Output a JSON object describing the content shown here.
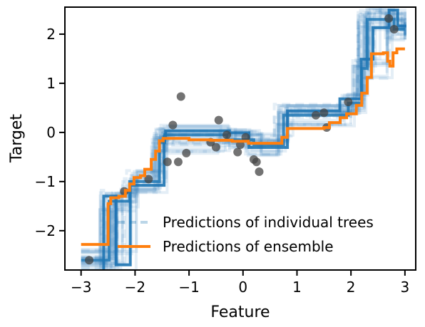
{
  "chart_data": {
    "type": "line",
    "title": "",
    "xlabel": "Feature",
    "ylabel": "Target",
    "xlim": [
      -3.3,
      3.2
    ],
    "ylim": [
      -2.8,
      2.55
    ],
    "x_ticks": [
      -3,
      -2,
      -1,
      0,
      1,
      2,
      3
    ],
    "x_tick_labels": [
      "−3",
      "−2",
      "−1",
      "0",
      "1",
      "2",
      "3"
    ],
    "y_ticks": [
      -2,
      -1,
      0,
      1,
      2
    ],
    "y_tick_labels": [
      "−2",
      "−1",
      "0",
      "1",
      "2"
    ],
    "grid": false,
    "legend": {
      "placement": "lower-right",
      "entries": [
        "Predictions of individual trees",
        "Predictions of ensemble"
      ]
    },
    "colors": {
      "trees": "#1f77b4",
      "ensemble": "#ff7f0e",
      "points": "#444444"
    },
    "scatter": {
      "x": [
        -2.85,
        -2.2,
        -1.75,
        -1.4,
        -1.3,
        -1.2,
        -1.15,
        -1.05,
        -0.6,
        -0.5,
        -0.45,
        -0.3,
        -0.05,
        -0.1,
        0.05,
        0.2,
        0.25,
        0.3,
        1.35,
        1.5,
        1.55,
        1.95,
        2.7,
        2.8
      ],
      "y": [
        -2.6,
        -1.2,
        -0.95,
        -0.6,
        0.15,
        -0.6,
        0.73,
        -0.42,
        -0.2,
        -0.3,
        0.25,
        -0.05,
        -0.25,
        -0.4,
        -0.1,
        -0.55,
        -0.6,
        -0.8,
        0.35,
        0.4,
        0.1,
        0.62,
        2.32,
        2.1
      ]
    },
    "series": [
      {
        "name": "Predictions of ensemble",
        "steps": [
          [
            -3.0,
            -2.28
          ],
          [
            -2.52,
            -2.28
          ],
          [
            -2.5,
            -1.45
          ],
          [
            -2.45,
            -1.33
          ],
          [
            -2.3,
            -1.3
          ],
          [
            -2.18,
            -1.18
          ],
          [
            -2.1,
            -1.05
          ],
          [
            -2.02,
            -0.92
          ],
          [
            -1.9,
            -0.88
          ],
          [
            -1.82,
            -0.75
          ],
          [
            -1.7,
            -0.55
          ],
          [
            -1.62,
            -0.38
          ],
          [
            -1.55,
            -0.17
          ],
          [
            -1.48,
            -0.12
          ],
          [
            -1.2,
            -0.12
          ],
          [
            -1.0,
            -0.15
          ],
          [
            -0.6,
            -0.16
          ],
          [
            -0.2,
            -0.18
          ],
          [
            0.1,
            -0.22
          ],
          [
            0.5,
            -0.22
          ],
          [
            0.72,
            -0.1
          ],
          [
            0.82,
            0.08
          ],
          [
            1.2,
            0.08
          ],
          [
            1.5,
            0.1
          ],
          [
            1.6,
            0.2
          ],
          [
            1.8,
            0.3
          ],
          [
            1.92,
            0.38
          ],
          [
            2.1,
            0.55
          ],
          [
            2.2,
            0.8
          ],
          [
            2.3,
            1.12
          ],
          [
            2.38,
            1.6
          ],
          [
            2.6,
            1.62
          ],
          [
            2.68,
            1.45
          ],
          [
            2.72,
            1.35
          ],
          [
            2.78,
            1.62
          ],
          [
            2.85,
            1.7
          ],
          [
            3.0,
            1.7
          ]
        ]
      },
      {
        "name": "Predictions of individual trees",
        "steps": [
          [
            -3.0,
            -2.6
          ],
          [
            -2.5,
            -2.6
          ],
          [
            -2.48,
            -1.4
          ],
          [
            -2.1,
            -1.0
          ],
          [
            -1.55,
            -0.2
          ],
          [
            -1.45,
            -0.05
          ],
          [
            -0.3,
            -0.15
          ],
          [
            0.2,
            -0.25
          ],
          [
            0.75,
            0.35
          ],
          [
            1.95,
            0.6
          ],
          [
            2.2,
            1.3
          ],
          [
            2.3,
            2.3
          ],
          [
            2.7,
            2.3
          ],
          [
            2.8,
            2.1
          ],
          [
            3.0,
            2.1
          ]
        ]
      }
    ]
  }
}
